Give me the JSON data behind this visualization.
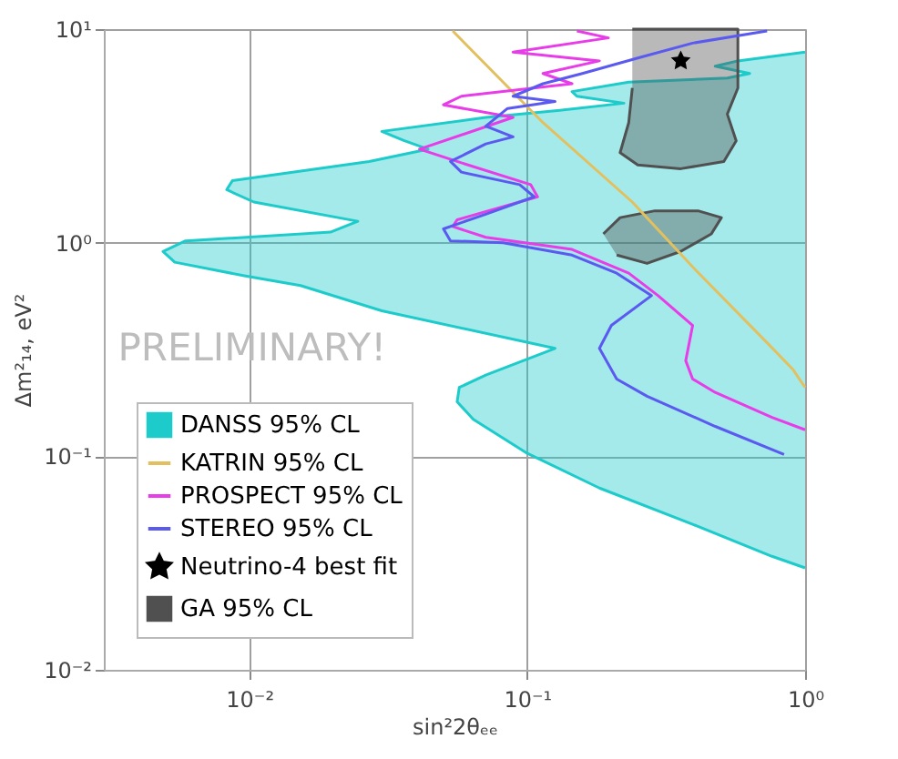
{
  "chart_data": {
    "type": "line",
    "xlabel": "sin²2θₑₑ",
    "ylabel": "Δm²₁₄, eV²",
    "log": "xy",
    "grid": true,
    "legend": "bottom left",
    "xlim": [
      0.003,
      1
    ],
    "xticks": [
      {
        "value": 0.01,
        "label": "10⁻²"
      },
      {
        "value": 0.1,
        "label": "10⁻¹"
      },
      {
        "value": 1,
        "label": "10⁰"
      }
    ],
    "ylim": [
      0.01,
      10
    ],
    "yticks": [
      {
        "value": 0.01,
        "label": "10⁻²"
      },
      {
        "value": 0.1,
        "label": "10⁻¹"
      },
      {
        "value": 1,
        "label": "10⁰"
      },
      {
        "value": 10,
        "label": "10¹"
      }
    ],
    "annotations": [
      "PRELIMINARY!"
    ],
    "series": [
      {
        "name": "DANSS 95% CL",
        "type": "area",
        "color": "#1ecbcb",
        "x": [
          1,
          0.573,
          0.475,
          0.632,
          0.525,
          0.232,
          0.145,
          0.151,
          0.223,
          0.131,
          0.071,
          0.03,
          0.036,
          0.044,
          0.027,
          0.0087,
          0.0083,
          0.0104,
          0.0246,
          0.0196,
          0.0059,
          0.0049,
          0.0054,
          0.0096,
          0.0153,
          0.03,
          0.126,
          0.071,
          0.057,
          0.056,
          0.064,
          0.099,
          0.182,
          0.394,
          0.76,
          1
        ],
        "values": [
          7.8,
          7.1,
          6.7,
          6.2,
          5.9,
          5.65,
          5.1,
          4.85,
          4.5,
          4.17,
          3.86,
          3.32,
          3.01,
          2.74,
          2.4,
          1.95,
          1.77,
          1.55,
          1.26,
          1.12,
          1.02,
          0.91,
          0.81,
          0.7,
          0.63,
          0.48,
          0.32,
          0.24,
          0.21,
          0.18,
          0.149,
          0.104,
          0.071,
          0.048,
          0.034,
          0.03
        ]
      },
      {
        "name": "KATRIN 95% CL",
        "color": "#e2c060",
        "x": [
          0.054,
          0.114,
          0.239,
          0.394,
          0.73,
          0.906,
          1
        ],
        "values": [
          9.8,
          3.65,
          1.55,
          0.77,
          0.34,
          0.254,
          0.21
        ]
      },
      {
        "name": "PROSPECT 95% CL",
        "color": "#e83ce8",
        "x": [
          0.151,
          0.196,
          0.089,
          0.182,
          0.114,
          0.145,
          0.058,
          0.05,
          0.089,
          0.041,
          0.056,
          0.103,
          0.109,
          0.056,
          0.054,
          0.071,
          0.145,
          0.232,
          0.296,
          0.394,
          0.372,
          0.394,
          0.475,
          0.76,
          1
        ],
        "values": [
          9.8,
          9.1,
          7.8,
          7.1,
          6.2,
          5.55,
          4.85,
          4.42,
          3.86,
          2.74,
          2.4,
          1.87,
          1.64,
          1.28,
          1.19,
          1.06,
          0.93,
          0.72,
          0.565,
          0.41,
          0.28,
          0.23,
          0.199,
          0.152,
          0.133
        ]
      },
      {
        "name": "STEREO 95% CL",
        "color": "#5a5af0",
        "x": [
          0.73,
          0.394,
          0.257,
          0.158,
          0.114,
          0.089,
          0.126,
          0.085,
          0.071,
          0.089,
          0.071,
          0.053,
          0.058,
          0.094,
          0.106,
          0.071,
          0.05,
          0.053,
          0.082,
          0.145,
          0.21,
          0.28,
          0.201,
          0.182,
          0.21,
          0.27,
          0.475,
          0.84
        ],
        "values": [
          9.8,
          8.6,
          7.4,
          6.2,
          5.55,
          4.85,
          4.58,
          4.25,
          3.51,
          3.13,
          2.9,
          2.4,
          2.14,
          1.87,
          1.64,
          1.36,
          1.16,
          1.02,
          1.0,
          0.875,
          0.72,
          0.565,
          0.41,
          0.32,
          0.23,
          0.191,
          0.138,
          0.102
        ]
      },
      {
        "name": "Neutrino-4 best fit",
        "type": "scatter",
        "marker": "star",
        "color": "#000000",
        "x": [
          0.357
        ],
        "values": [
          7.1
        ]
      },
      {
        "name": "GA 95% CL",
        "type": "area",
        "color": "#505050",
        "x": [
          0.239,
          0.573,
          0.573,
          0.525,
          0.565,
          0.51,
          0.357,
          0.25,
          0.216,
          0.232,
          0.239,
          null,
          0.188,
          0.216,
          0.288,
          0.412,
          0.5,
          0.46,
          0.357,
          0.27,
          0.21
        ],
        "values": [
          10,
          10,
          5.3,
          4.0,
          3.0,
          2.4,
          2.22,
          2.31,
          2.64,
          3.65,
          5.3,
          null,
          1.1,
          1.31,
          1.41,
          1.41,
          1.31,
          1.1,
          0.91,
          0.8,
          0.875
        ]
      }
    ]
  }
}
